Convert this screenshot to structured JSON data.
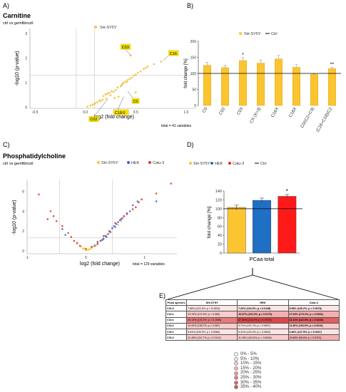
{
  "panels": {
    "A": {
      "label": "A)",
      "title": "Carnitine",
      "subtitle": "ctrl vs gemfibrozil",
      "total": "total = 41 variables"
    },
    "B": {
      "label": "B)"
    },
    "C": {
      "label": "C)",
      "title": "Phosphatidylcholine",
      "subtitle": "ctrl vs gemfibrozil",
      "total": "total = 129 variables"
    },
    "D": {
      "label": "D)"
    },
    "E": {
      "label": "E)"
    }
  },
  "chart_data": [
    {
      "panel": "A",
      "type": "scatter",
      "xlabel": "log2 (fold change)",
      "ylabel": "-log10 (p-value)",
      "xlim": [
        -0.55,
        1.1
      ],
      "ylim": [
        -0.05,
        3.2
      ],
      "xticks": [
        "-0.5",
        "0.0",
        "0.5",
        "1.0"
      ],
      "yticks": [
        "0",
        "1",
        "2",
        "3"
      ],
      "legend": [
        "SH-SY5Y"
      ],
      "colors": {
        "SH-SY5Y": "#f5c242",
        "highlight": "#f5e000"
      },
      "threshold_y": 1.3,
      "threshold_x": [
        -0.09,
        0.09
      ],
      "points": [
        [
          0.02,
          0.02
        ],
        [
          0.05,
          0.06
        ],
        [
          0.07,
          0.1
        ],
        [
          0.1,
          0.16
        ],
        [
          0.12,
          0.2
        ],
        [
          0.14,
          0.28
        ],
        [
          0.17,
          0.3
        ],
        [
          0.18,
          0.45
        ],
        [
          0.2,
          0.52
        ],
        [
          0.22,
          0.55
        ],
        [
          0.24,
          0.58
        ],
        [
          0.26,
          0.65
        ],
        [
          0.28,
          0.62
        ],
        [
          0.3,
          0.7
        ],
        [
          0.32,
          0.8
        ],
        [
          0.35,
          0.85
        ],
        [
          0.37,
          0.95
        ],
        [
          0.38,
          1.0
        ],
        [
          0.4,
          1.05
        ],
        [
          0.42,
          1.1
        ],
        [
          0.44,
          1.15
        ],
        [
          0.46,
          1.2
        ],
        [
          0.48,
          1.28
        ],
        [
          0.5,
          1.32
        ],
        [
          0.52,
          1.4
        ],
        [
          0.55,
          1.45
        ],
        [
          0.6,
          1.6
        ],
        [
          0.62,
          1.65
        ],
        [
          0.75,
          1.85
        ],
        [
          0.45,
          2.1
        ],
        [
          0.33,
          0.42
        ],
        [
          0.29,
          0.38
        ],
        [
          0.15,
          0.24
        ],
        [
          0.09,
          0.12
        ],
        [
          0.25,
          0.48
        ],
        [
          0.36,
          0.9
        ],
        [
          0.41,
          1.02
        ],
        [
          0.5,
          0.6
        ],
        [
          0.58,
          1.55
        ],
        [
          0.68,
          1.75
        ],
        [
          0.21,
          0.35
        ]
      ],
      "annotations": [
        {
          "label": "C16",
          "x": 0.77,
          "y": 1.9
        },
        {
          "label": "C03",
          "x": 0.45,
          "y": 2.1
        },
        {
          "label": "C0",
          "x": 0.42,
          "y": 0.65
        },
        {
          "label": "C18:0",
          "x": 0.38,
          "y": 0.42
        },
        {
          "label": "C02",
          "x": 0.22,
          "y": 0.32
        }
      ]
    },
    {
      "panel": "B",
      "type": "bar",
      "ylabel": "fold change [%]",
      "ylim": [
        0,
        200
      ],
      "yticks": [
        "0",
        "50",
        "100",
        "150",
        "200"
      ],
      "legend": [
        "SH-SY5Y",
        "Ctrl"
      ],
      "categories": [
        "C0",
        "C02",
        "C03",
        "CX (X>3)",
        "C16X",
        "C18X",
        "C0/(C2+C3)",
        "(C16+C18)/C2"
      ],
      "values": [
        125,
        118,
        140,
        132,
        145,
        119,
        97,
        115
      ],
      "errors": [
        10,
        8,
        9,
        10,
        11,
        8,
        2,
        4
      ],
      "significance": [
        "",
        "",
        "*",
        "",
        "",
        "",
        "",
        "**"
      ],
      "reference": 100,
      "colors": {
        "bar": "#fbc531",
        "edge": "#d89b00"
      }
    },
    {
      "panel": "C",
      "type": "scatter",
      "xlabel": "log2 (fold change)",
      "ylabel": "-log10 (p-value)",
      "xlim": [
        -1.0,
        1.55
      ],
      "ylim": [
        -0.3,
        7.2
      ],
      "xticks": [
        "-1",
        "0",
        "1"
      ],
      "yticks": [
        "0",
        "2",
        "4",
        "6"
      ],
      "legend": [
        "SH-SY5Y",
        "HEK",
        "Calu-3"
      ],
      "colors": {
        "SH-SY5Y": "#f5c242",
        "HEK": "#3b5bdb",
        "Calu-3": "#e03131"
      },
      "threshold_y": 1.3,
      "threshold_x": [
        -0.45,
        0.45
      ],
      "series": [
        {
          "name": "SH-SY5Y",
          "points": [
            [
              -0.1,
              0.5
            ],
            [
              -0.05,
              0.2
            ],
            [
              0.0,
              0.05
            ],
            [
              0.05,
              0.15
            ],
            [
              0.08,
              0.3
            ],
            [
              -0.15,
              0.7
            ],
            [
              0.12,
              0.4
            ],
            [
              0.15,
              0.6
            ],
            [
              0.2,
              0.8
            ],
            [
              0.25,
              1.0
            ],
            [
              0.3,
              1.3
            ],
            [
              0.35,
              1.6
            ],
            [
              -0.2,
              1.0
            ],
            [
              0.4,
              1.9
            ],
            [
              0.02,
              0.1
            ],
            [
              -0.03,
              0.25
            ],
            [
              0.1,
              0.25
            ],
            [
              0.18,
              0.55
            ],
            [
              0.28,
              1.1
            ],
            [
              0.45,
              2.2
            ],
            [
              0.55,
              2.6
            ],
            [
              0.6,
              3.0
            ],
            [
              -0.08,
              0.4
            ],
            [
              0.06,
              0.12
            ]
          ]
        },
        {
          "name": "HEK",
          "points": [
            [
              0.2,
              0.7
            ],
            [
              0.25,
              1.0
            ],
            [
              0.3,
              1.2
            ],
            [
              0.35,
              1.4
            ],
            [
              0.38,
              1.7
            ],
            [
              0.42,
              1.9
            ],
            [
              0.45,
              2.3
            ],
            [
              0.5,
              2.4
            ],
            [
              0.52,
              2.7
            ],
            [
              0.55,
              2.9
            ],
            [
              0.58,
              3.1
            ],
            [
              0.62,
              3.3
            ],
            [
              0.65,
              3.5
            ],
            [
              0.7,
              3.8
            ],
            [
              0.75,
              4.0
            ],
            [
              0.8,
              4.6
            ],
            [
              0.88,
              5.0
            ],
            [
              1.2,
              5.0
            ],
            [
              -0.35,
              1.6
            ],
            [
              -0.4,
              2.2
            ],
            [
              0.15,
              0.5
            ],
            [
              0.28,
              1.1
            ],
            [
              0.33,
              1.5
            ],
            [
              0.48,
              2.5
            ]
          ]
        },
        {
          "name": "Calu-3",
          "points": [
            [
              -0.8,
              5.7
            ],
            [
              -0.6,
              4.0
            ],
            [
              -0.55,
              3.5
            ],
            [
              -0.5,
              3.0
            ],
            [
              -0.4,
              2.5
            ],
            [
              -0.3,
              1.8
            ],
            [
              -0.25,
              1.4
            ],
            [
              -0.2,
              1.0
            ],
            [
              -0.15,
              0.8
            ],
            [
              -0.1,
              0.5
            ],
            [
              0.0,
              0.2
            ],
            [
              0.1,
              0.4
            ],
            [
              0.2,
              0.9
            ],
            [
              0.3,
              1.5
            ],
            [
              0.4,
              2.0
            ],
            [
              0.5,
              2.8
            ],
            [
              0.6,
              3.2
            ],
            [
              0.7,
              3.7
            ],
            [
              0.8,
              4.2
            ],
            [
              0.85,
              4.4
            ],
            [
              0.9,
              4.9
            ],
            [
              1.2,
              5.8
            ],
            [
              1.45,
              6.8
            ],
            [
              -0.65,
              3.2
            ],
            [
              0.65,
              3.5
            ],
            [
              0.95,
              5.2
            ]
          ]
        }
      ]
    },
    {
      "panel": "D",
      "type": "bar",
      "ylabel": "fold change [%]",
      "xlabel": "PCaa total",
      "ylim": [
        0,
        140
      ],
      "yticks": [
        "0",
        "20",
        "40",
        "60",
        "80",
        "100",
        "120",
        "140"
      ],
      "legend": [
        "SH-SY5Y",
        "HEK",
        "Calu-3",
        "Ctrl"
      ],
      "categories": [
        "SH-SY5Y",
        "HEK",
        "Calu-3"
      ],
      "values": [
        103,
        119,
        128
      ],
      "errors": [
        5,
        5,
        4
      ],
      "significance": [
        "",
        "",
        "*"
      ],
      "reference": 100,
      "colors": {
        "SH-SY5Y": "#fbc531",
        "HEK": "#1f6fc5",
        "Calu-3": "#ff1a1a"
      }
    },
    {
      "panel": "E",
      "type": "table",
      "columns": [
        "Pcaa species",
        "SH-SY5Y",
        "HEK",
        "Calu-3"
      ],
      "rows": [
        {
          "species": "C32:0",
          "cells": [
            {
              "text": "7.68% (122.4%; p = 0.2629)",
              "shade": 1
            },
            {
              "text": "7.20% (134.9%; p = 0.0138)",
              "shade": 1,
              "bold": true
            },
            {
              "text": "5.58% (139.2%; p = 0.0078)",
              "shade": 1,
              "bold": true
            }
          ]
        },
        {
          "species": "C32:1",
          "cells": [
            {
              "text": "13.78% (137.8%; p = 0.089)",
              "shade": 2
            },
            {
              "text": "16.37% (132.2%; p = 0.0176)",
              "shade": 3,
              "bold": true
            },
            {
              "text": "17.63% (174.2%; p = 0.0002)",
              "shade": 3,
              "bold": true
            }
          ]
        },
        {
          "species": "C34:1",
          "cells": [
            {
              "text": "26.13% (126.3%; p = 0.1858)",
              "shade": 5
            },
            {
              "text": "37.03% (114.4%; p = 0.1974)",
              "shade": 7
            },
            {
              "text": "31.12% (122.8%; p = 0.0245)",
              "shade": 6,
              "bold": true
            }
          ]
        },
        {
          "species": "C34:2",
          "cells": [
            {
              "text": "10.20% (138.7%; p = 0.087)",
              "shade": 2
            },
            {
              "text": "5.71% (121.7%; p = 0.0837)",
              "shade": 1
            },
            {
              "text": "11.40% (154.0%; p = 0.0016)",
              "shade": 2,
              "bold": true
            }
          ]
        },
        {
          "species": "C36:1",
          "cells": [
            {
              "text": "6.04% (109.2%; p = 0.5986)",
              "shade": 1
            },
            {
              "text": "9.31% (123.2%; p = 0.2803)",
              "shade": 1
            },
            {
              "text": "6.86% (137.5%; p = 0.0047)",
              "shade": 1,
              "bold": true
            }
          ]
        },
        {
          "species": "C36:2",
          "cells": [
            {
              "text": "11.46% (124.7%; p = 0.2142)",
              "shade": 2
            },
            {
              "text": "11.26% (104.8%; p = 0.6545)",
              "shade": 2
            },
            {
              "text": "15.68% (96.6%; p = 0.6704)",
              "shade": 3
            }
          ]
        }
      ],
      "legend": [
        "0% - 5%",
        "5% - 10%",
        "10% - 15%",
        "15% - 20%",
        "20% - 25%",
        "25% - 30%",
        "30% - 35%",
        "35% - 40%"
      ],
      "shade_colors": [
        "#ffffff",
        "#fbe4e4",
        "#f8cccc",
        "#f4b0b0",
        "#ee9494",
        "#e87a7a",
        "#e06060",
        "#d84848"
      ]
    }
  ]
}
